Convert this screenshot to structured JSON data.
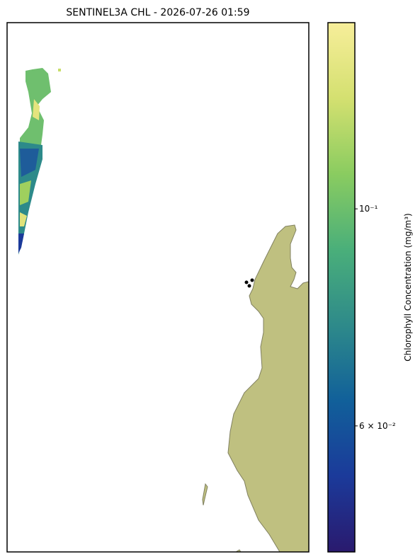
{
  "map": {
    "title": "SENTINEL3A CHL - 2026-07-26 01:59",
    "colorbar": {
      "label": "Chlorophyll Concentration (mg/m³)",
      "log": true,
      "lim": [
        0.0446,
        0.155
      ],
      "ticks": [
        {
          "value": 0.1,
          "label": "10⁻¹"
        },
        {
          "value": 0.06,
          "label": "6 × 10⁻²"
        }
      ],
      "colormap": [
        "#2a1a6e",
        "#1b3a9a",
        "#11609a",
        "#2e8a8a",
        "#4aaf7a",
        "#8acc60",
        "#d4e070",
        "#f7ee9a"
      ]
    }
  }
}
